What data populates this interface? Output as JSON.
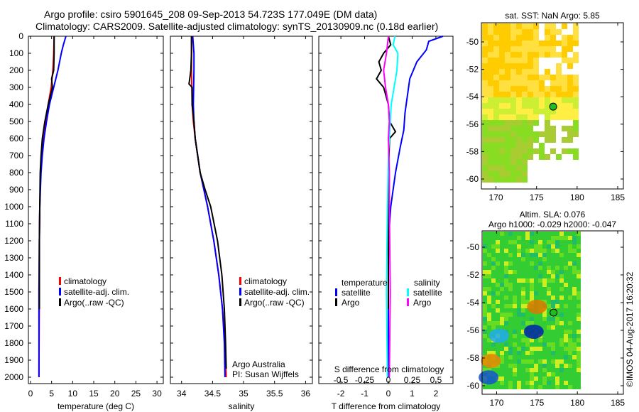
{
  "header": {
    "line1": "Argo profile: csiro 5901645_208 09-Sep-2013 54.723S 177.049E (DM data)",
    "line2": "Climatology: CARS2009. Satellite-adjusted climatology: synTS_20130909.nc (0.18d earlier)"
  },
  "colors": {
    "climatology": "#ff0000",
    "satellite": "#0000ff",
    "argo": "#000000",
    "sal_satellite": "#00ffff",
    "sal_argo": "#ff00ff"
  },
  "chart_data": [
    {
      "type": "line",
      "xlabel": "temperature (deg C)",
      "xlim": [
        -0.5,
        31.5
      ],
      "ylim": [
        2040,
        0
      ],
      "xticks": [
        0,
        5,
        10,
        15,
        20,
        25,
        30
      ],
      "yticks": [
        0,
        100,
        200,
        300,
        400,
        500,
        600,
        700,
        800,
        900,
        1000,
        1100,
        1200,
        1300,
        1400,
        1500,
        1600,
        1700,
        1800,
        1900,
        2000
      ],
      "legend": [
        "climatology",
        "satellite-adj. clim.",
        "Argo(..raw -QC)"
      ],
      "series": [
        {
          "name": "climatology",
          "color": "#ff0000",
          "depth": [
            0,
            100,
            200,
            300,
            400,
            500,
            600,
            700,
            800,
            1000,
            1200,
            1500,
            2000
          ],
          "values": [
            5.6,
            5.5,
            5.3,
            4.9,
            4.2,
            3.6,
            3.0,
            2.6,
            2.4,
            2.2,
            2.1,
            2.1,
            2.0
          ]
        },
        {
          "name": "satellite-adj. clim.",
          "color": "#0000ff",
          "depth": [
            0,
            50,
            100,
            200,
            300,
            400,
            500,
            600,
            700,
            800,
            1000,
            1200,
            1500,
            2000
          ],
          "values": [
            8.4,
            7.8,
            7.3,
            6.5,
            5.5,
            4.5,
            3.8,
            3.2,
            2.8,
            2.5,
            2.2,
            2.1,
            2.0,
            2.0
          ]
        },
        {
          "name": "Argo(..raw -QC)",
          "color": "#000000",
          "depth": [
            0,
            100,
            200,
            250,
            300,
            400,
            500,
            600,
            700,
            800,
            1000,
            1200,
            1500,
            1600
          ],
          "values": [
            5.6,
            5.6,
            5.5,
            5.0,
            5.2,
            4.2,
            3.4,
            2.8,
            2.5,
            2.3,
            2.2,
            2.1,
            2.1,
            2.1
          ]
        }
      ]
    },
    {
      "type": "line",
      "xlabel": "salinity",
      "xlim": [
        33.82,
        36.11
      ],
      "ylim": [
        2040,
        0
      ],
      "xticks": [
        "34",
        "34.5",
        "35",
        "35.5",
        "36"
      ],
      "xtickvals": [
        34,
        34.5,
        35,
        35.5,
        36
      ],
      "legend": [
        "climatology",
        "satellite-adj. clim.",
        "Argo(..raw -QC)"
      ],
      "annotation": [
        "Argo Australia",
        "PI: Susan Wijffels"
      ],
      "series": [
        {
          "name": "climatology",
          "color": "#ff0000",
          "depth": [
            0,
            200,
            400,
            500,
            600,
            700,
            800,
            1000,
            1200,
            1400,
            1600,
            1800,
            2000
          ],
          "values": [
            34.16,
            34.16,
            34.17,
            34.19,
            34.22,
            34.26,
            34.3,
            34.42,
            34.52,
            34.6,
            34.66,
            34.7,
            34.72
          ]
        },
        {
          "name": "satellite-adj. clim.",
          "color": "#0000ff",
          "depth": [
            0,
            100,
            200,
            400,
            500,
            600,
            700,
            800,
            1000,
            1200,
            1400,
            1600,
            1800,
            2000
          ],
          "values": [
            34.18,
            34.2,
            34.2,
            34.19,
            34.2,
            34.22,
            34.26,
            34.3,
            34.42,
            34.52,
            34.6,
            34.66,
            34.69,
            34.7
          ]
        },
        {
          "name": "Argo(..raw -QC)",
          "color": "#000000",
          "depth": [
            0,
            100,
            200,
            280,
            300,
            400,
            500,
            600,
            700,
            800,
            900,
            1000,
            1200,
            1400,
            1600,
            1800,
            1950
          ],
          "values": [
            34.16,
            34.16,
            34.15,
            34.12,
            34.17,
            34.17,
            34.2,
            34.22,
            34.26,
            34.3,
            34.38,
            34.47,
            34.58,
            34.65,
            34.69,
            34.71,
            34.72
          ]
        }
      ]
    },
    {
      "type": "line",
      "xlabel": "T difference from climatology",
      "xlabel2": "S difference from climatology",
      "xlim": [
        -2.93,
        2.72
      ],
      "ylim": [
        2040,
        0
      ],
      "xticks": [
        "-2",
        "-1",
        "0",
        "1",
        "2"
      ],
      "xtickvals": [
        -2,
        -1,
        0,
        1,
        2
      ],
      "x2ticks": [
        "-0.5",
        "-0.25",
        "0",
        "0.25",
        "0.5"
      ],
      "x2tickvals": [
        -0.5,
        -0.25,
        0,
        0.25,
        0.5
      ],
      "legend": {
        "temperature": "temperature",
        "salinity": "salinity",
        "t_sat": "satellite",
        "t_argo": "Argo",
        "s_sat": "satellite",
        "s_argo": "Argo"
      },
      "series": [
        {
          "name": "T satellite",
          "color": "#0000ff",
          "depth": [
            0,
            30,
            80,
            150,
            250,
            350,
            450,
            550,
            650,
            800,
            1000,
            1200,
            1500,
            2000
          ],
          "values": [
            2.3,
            1.7,
            1.6,
            1.2,
            0.9,
            0.8,
            0.7,
            0.65,
            0.5,
            0.3,
            0.1,
            0.0,
            0.0,
            0.0
          ]
        },
        {
          "name": "T Argo",
          "color": "#000000",
          "depth": [
            0,
            50,
            100,
            150,
            200,
            250,
            300,
            400,
            500,
            560,
            600,
            800,
            1000,
            1600
          ],
          "values": [
            0,
            0.1,
            -0.2,
            -0.4,
            -0.3,
            -0.5,
            -0.2,
            0,
            0.05,
            0.3,
            0.05,
            0.0,
            0.0,
            0.0
          ]
        },
        {
          "name": "S satellite",
          "color": "#00ffff",
          "depth": [
            0,
            50,
            100,
            200,
            300,
            400,
            500,
            700,
            1000,
            1500,
            2000
          ],
          "values": [
            0.07,
            0.05,
            0.1,
            0.09,
            0.06,
            0.03,
            0.02,
            0.0,
            -0.01,
            -0.02,
            -0.01
          ]
        },
        {
          "name": "S Argo",
          "color": "#ff00ff",
          "depth": [
            0,
            100,
            200,
            300,
            400,
            500,
            600,
            800,
            1000,
            1500,
            2000
          ],
          "values": [
            0.0,
            -0.02,
            -0.05,
            -0.03,
            0.0,
            0.01,
            0.0,
            0.01,
            0.01,
            0.02,
            0.01
          ]
        }
      ]
    }
  ],
  "maps": [
    {
      "title": "sat. SST: NaN Argo: 5.85",
      "lon_ticks": [
        "170",
        "175",
        "180",
        "185"
      ],
      "lat_ticks": [
        "-50",
        "-52",
        "-54",
        "-56",
        "-58",
        "-60"
      ]
    },
    {
      "title1": "Altim. SLA: 0.076",
      "title2": "Argo h1000: -0.029 h2000: -0.047",
      "lon_ticks": [
        "170",
        "175",
        "180",
        "185"
      ],
      "lat_ticks": [
        "-50",
        "-52",
        "-54",
        "-56",
        "-58",
        "-60"
      ]
    }
  ],
  "credit": "©IMOS 04-Aug-2017 16:20:32"
}
